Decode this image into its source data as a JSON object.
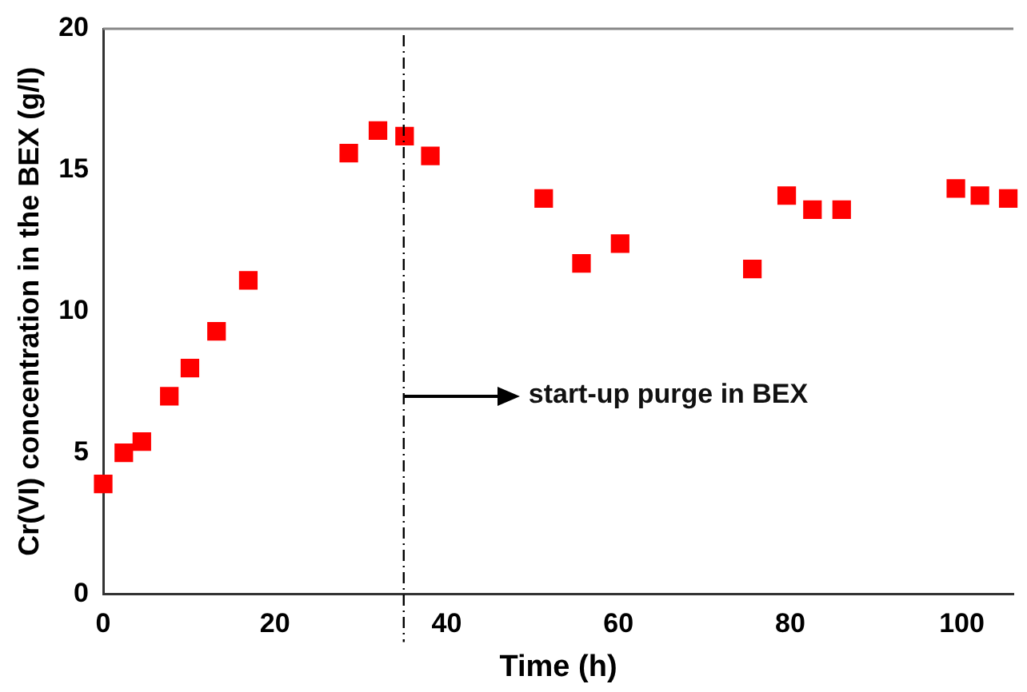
{
  "chart_data": {
    "type": "scatter",
    "xlabel": "Time (h)",
    "ylabel": "Cr(VI) concentration in the BEX (g/l)",
    "x": [
      0,
      2.4,
      4.5,
      7.7,
      10.1,
      13.2,
      16.9,
      28.6,
      32.0,
      35.1,
      38.1,
      51.3,
      55.7,
      60.2,
      75.6,
      79.6,
      82.6,
      86.0,
      99.3,
      102.1,
      105.4
    ],
    "series": [
      {
        "color": "#ff0000",
        "values": [
          3.9,
          5.0,
          5.4,
          7.0,
          8.0,
          9.3,
          11.1,
          15.6,
          16.4,
          16.2,
          15.5,
          14.0,
          11.7,
          12.4,
          11.5,
          14.1,
          13.6,
          13.6,
          14.35,
          14.1,
          14.0
        ]
      }
    ],
    "marker": "square",
    "grid": false,
    "legend": false,
    "xlim": [
      0,
      106
    ],
    "xticks": [
      0,
      20,
      40,
      60,
      80,
      100
    ],
    "ylim": [
      0,
      20
    ],
    "yticks": [
      0,
      5,
      10,
      15,
      20
    ],
    "ref_lines": [
      {
        "axis": "x",
        "value": 35,
        "line_style": "dashed",
        "color": "#000000"
      }
    ],
    "annotations": [
      {
        "text": "start-up purge in BEX",
        "x": 35,
        "y": 7
      }
    ]
  }
}
